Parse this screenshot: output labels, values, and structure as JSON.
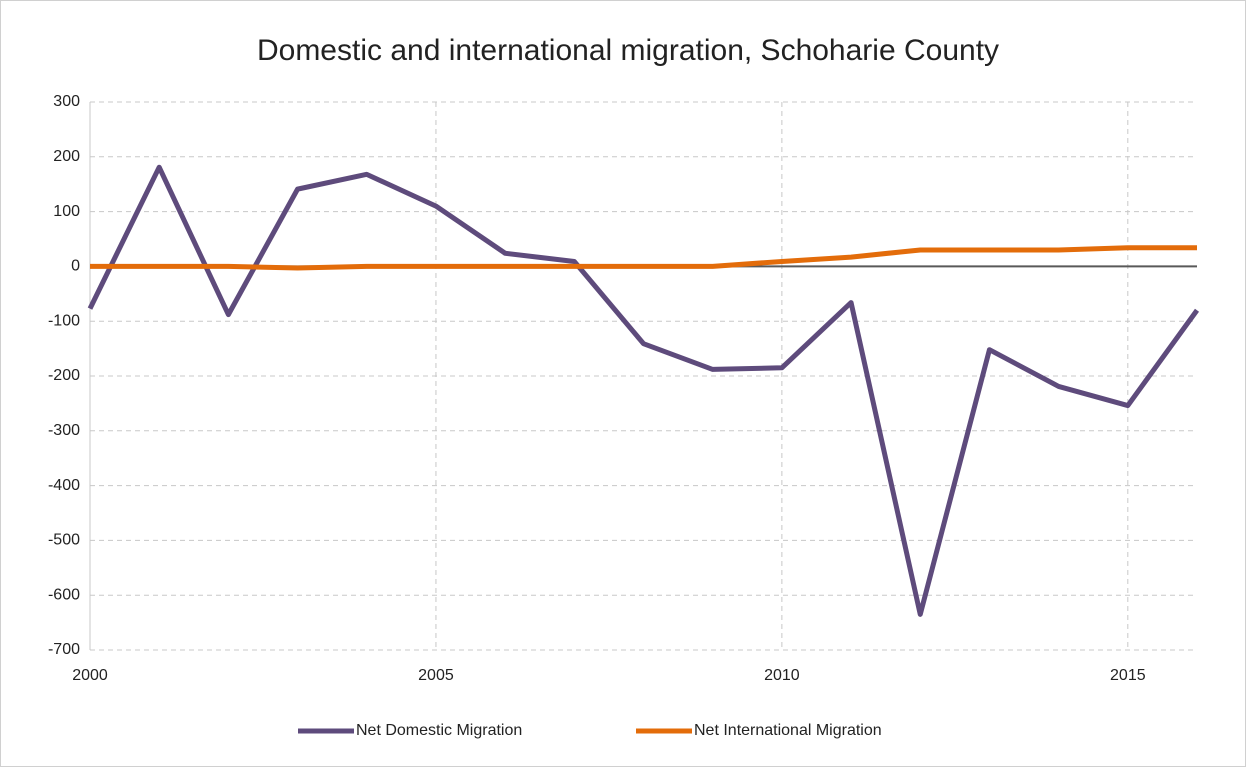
{
  "chart_data": {
    "type": "line",
    "title": "Domestic and international migration, Schoharie County",
    "x": [
      2000,
      2001,
      2002,
      2003,
      2004,
      2005,
      2006,
      2007,
      2008,
      2009,
      2010,
      2011,
      2012,
      2013,
      2014,
      2015,
      2016
    ],
    "series": [
      {
        "name": "Net Domestic Migration",
        "color": "#5e4b7c",
        "values": [
          -77,
          181,
          -88,
          141,
          168,
          110,
          24,
          9,
          -141,
          -188,
          -185,
          -66,
          -635,
          -152,
          -219,
          -254,
          -80
        ]
      },
      {
        "name": "Net International Migration",
        "color": "#e36c0a",
        "values": [
          0,
          0,
          0,
          -3,
          0,
          0,
          0,
          0,
          0,
          0,
          9,
          17,
          30,
          30,
          30,
          34,
          34
        ]
      }
    ],
    "xlim": [
      2000,
      2016
    ],
    "xticks": [
      2000,
      2005,
      2010,
      2015
    ],
    "ylim": [
      -700,
      300
    ],
    "yticks": [
      -700,
      -600,
      -500,
      -400,
      -300,
      -200,
      -100,
      0,
      100,
      200,
      300
    ],
    "grid": true,
    "legend": "bottom"
  }
}
